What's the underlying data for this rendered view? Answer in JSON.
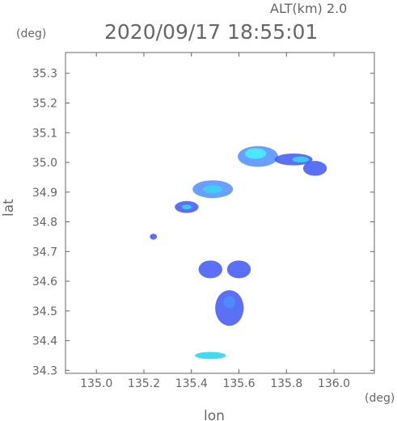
{
  "chart_data": {
    "type": "scatter",
    "title": "2020/09/17 18:55:01",
    "subtitle": "ALT(km) 2.0",
    "xlabel": "lon",
    "ylabel": "lat",
    "x_unit": "(deg)",
    "y_unit": "(deg)",
    "xlim": [
      134.87,
      136.17
    ],
    "ylim": [
      34.29,
      35.37
    ],
    "grid": false,
    "x_ticks": [
      135.0,
      135.2,
      135.4,
      135.6,
      135.8,
      136.0
    ],
    "x_tick_labels": [
      "135.0",
      "135.2",
      "135.4",
      "135.6",
      "135.8",
      "136.0"
    ],
    "y_ticks": [
      34.3,
      34.4,
      34.5,
      34.6,
      34.7,
      34.8,
      34.9,
      35.0,
      35.1,
      35.2,
      35.3
    ],
    "y_tick_labels": [
      "34.3",
      "34.4",
      "34.5",
      "34.6",
      "34.7",
      "34.8",
      "34.9",
      "35.0",
      "35.1",
      "35.2",
      "35.3"
    ],
    "colors": {
      "low_blue": "#3e57f2",
      "medium_blue": "#4d8fff",
      "teal": "#39d7ef",
      "cyan": "#49f1ff",
      "axis": "#666666"
    },
    "echo_clusters": [
      {
        "name": "north-core",
        "lon": 135.68,
        "lat": 35.02,
        "rx": 0.085,
        "ry": 0.035,
        "color": "#4d8fff"
      },
      {
        "name": "north-core-cyan",
        "lon": 135.67,
        "lat": 35.03,
        "rx": 0.045,
        "ry": 0.018,
        "color": "#49f1ff"
      },
      {
        "name": "north-tail",
        "lon": 135.83,
        "lat": 35.01,
        "rx": 0.08,
        "ry": 0.02,
        "color": "#3e57f2"
      },
      {
        "name": "north-tail-teal",
        "lon": 135.86,
        "lat": 35.01,
        "rx": 0.035,
        "ry": 0.01,
        "color": "#39d7ef"
      },
      {
        "name": "east-cell",
        "lon": 135.92,
        "lat": 34.98,
        "rx": 0.05,
        "ry": 0.025,
        "color": "#3e57f2"
      },
      {
        "name": "mid-band",
        "lon": 135.49,
        "lat": 34.91,
        "rx": 0.085,
        "ry": 0.03,
        "color": "#4d8fff"
      },
      {
        "name": "mid-band-cyan",
        "lon": 135.49,
        "lat": 34.91,
        "rx": 0.04,
        "ry": 0.013,
        "color": "#39d7ef"
      },
      {
        "name": "west-cell",
        "lon": 135.38,
        "lat": 34.85,
        "rx": 0.05,
        "ry": 0.02,
        "color": "#3e57f2"
      },
      {
        "name": "west-cell-teal",
        "lon": 135.38,
        "lat": 34.85,
        "rx": 0.02,
        "ry": 0.008,
        "color": "#39d7ef"
      },
      {
        "name": "southwest-dot",
        "lon": 135.24,
        "lat": 34.75,
        "rx": 0.015,
        "ry": 0.01,
        "color": "#3e57f2"
      },
      {
        "name": "center-west",
        "lon": 135.48,
        "lat": 34.64,
        "rx": 0.05,
        "ry": 0.03,
        "color": "#3e57f2"
      },
      {
        "name": "center-east",
        "lon": 135.6,
        "lat": 34.64,
        "rx": 0.05,
        "ry": 0.03,
        "color": "#3e57f2"
      },
      {
        "name": "south-core",
        "lon": 135.56,
        "lat": 34.51,
        "rx": 0.06,
        "ry": 0.06,
        "color": "#3e57f2"
      },
      {
        "name": "south-core-inner",
        "lon": 135.56,
        "lat": 34.53,
        "rx": 0.025,
        "ry": 0.02,
        "color": "#4d8fff"
      },
      {
        "name": "far-south",
        "lon": 135.48,
        "lat": 34.35,
        "rx": 0.065,
        "ry": 0.012,
        "color": "#39d7ef"
      }
    ]
  }
}
